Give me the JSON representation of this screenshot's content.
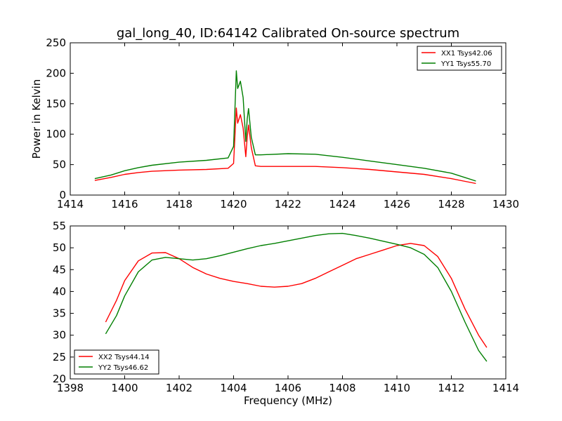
{
  "title": "gal_long_40, ID:64142 Calibrated On-source spectrum",
  "colors": {
    "red": "#ff0000",
    "green": "#007f00"
  },
  "chart_data": [
    {
      "type": "line",
      "xlabel": "",
      "ylabel": "Power in Kelvin",
      "xlim": [
        1414,
        1430
      ],
      "ylim": [
        0,
        250
      ],
      "xticks": [
        1414,
        1416,
        1418,
        1420,
        1422,
        1424,
        1426,
        1428,
        1430
      ],
      "yticks": [
        0,
        50,
        100,
        150,
        200,
        250
      ],
      "legend_position": "top-right",
      "series": [
        {
          "name": "XX1 Tsys42.06",
          "color": "#ff0000",
          "x": [
            1414.9,
            1415.5,
            1416,
            1416.5,
            1417,
            1418,
            1419,
            1419.8,
            1420.0,
            1420.1,
            1420.15,
            1420.25,
            1420.35,
            1420.45,
            1420.5,
            1420.55,
            1420.65,
            1420.8,
            1421,
            1422,
            1423,
            1424,
            1425,
            1426,
            1427,
            1428,
            1428.9
          ],
          "y": [
            24,
            29,
            34,
            37,
            39,
            41,
            42,
            44,
            52,
            143,
            118,
            132,
            110,
            63,
            95,
            115,
            78,
            48,
            47,
            47,
            47,
            45,
            42,
            38,
            34,
            27,
            19
          ]
        },
        {
          "name": "YY1 Tsys55.70",
          "color": "#007f00",
          "x": [
            1414.9,
            1415.5,
            1416,
            1416.5,
            1417,
            1418,
            1419,
            1419.8,
            1420.0,
            1420.1,
            1420.15,
            1420.25,
            1420.35,
            1420.45,
            1420.5,
            1420.55,
            1420.65,
            1420.8,
            1421,
            1422,
            1423,
            1424,
            1425,
            1426,
            1427,
            1428,
            1428.9
          ],
          "y": [
            27,
            33,
            40,
            45,
            49,
            54,
            57,
            61,
            80,
            204,
            175,
            187,
            160,
            88,
            125,
            142,
            95,
            66,
            66,
            68,
            67,
            62,
            56,
            50,
            44,
            36,
            23
          ]
        }
      ]
    },
    {
      "type": "line",
      "xlabel": "Frequency (MHz)",
      "ylabel": "",
      "xlim": [
        1398,
        1414
      ],
      "ylim": [
        20,
        55
      ],
      "xticks": [
        1398,
        1400,
        1402,
        1404,
        1406,
        1408,
        1410,
        1412,
        1414
      ],
      "yticks": [
        20,
        25,
        30,
        35,
        40,
        45,
        50,
        55
      ],
      "legend_position": "bottom-left",
      "series": [
        {
          "name": "XX2 Tsys44.14",
          "color": "#ff0000",
          "x": [
            1399.3,
            1399.7,
            1400,
            1400.5,
            1401,
            1401.5,
            1402,
            1402.5,
            1403,
            1403.5,
            1404,
            1404.5,
            1405,
            1405.5,
            1406,
            1406.5,
            1407,
            1407.5,
            1408,
            1408.5,
            1409,
            1409.5,
            1410,
            1410.5,
            1411,
            1411.5,
            1412,
            1412.5,
            1413,
            1413.3
          ],
          "y": [
            33,
            38,
            42.5,
            47,
            48.8,
            48.9,
            47.5,
            45.5,
            44,
            43,
            42.3,
            41.8,
            41.2,
            41,
            41.2,
            41.8,
            43,
            44.5,
            46,
            47.5,
            48.5,
            49.5,
            50.5,
            51,
            50.5,
            48,
            43,
            36,
            30,
            27.2
          ]
        },
        {
          "name": "YY2 Tsys46.62",
          "color": "#007f00",
          "x": [
            1399.3,
            1399.7,
            1400,
            1400.5,
            1401,
            1401.5,
            1402,
            1402.5,
            1403,
            1403.5,
            1404,
            1404.5,
            1405,
            1405.5,
            1406,
            1406.5,
            1407,
            1407.5,
            1408,
            1408.5,
            1409,
            1409.5,
            1410,
            1410.5,
            1411,
            1411.5,
            1412,
            1412.5,
            1413,
            1413.3
          ],
          "y": [
            30.3,
            34.5,
            39,
            44.5,
            47.2,
            47.8,
            47.5,
            47.2,
            47.5,
            48.2,
            49,
            49.8,
            50.5,
            51,
            51.6,
            52.2,
            52.8,
            53.2,
            53.3,
            52.8,
            52.2,
            51.5,
            50.8,
            50,
            48.5,
            45.5,
            40,
            33,
            26.5,
            24
          ]
        }
      ]
    }
  ]
}
